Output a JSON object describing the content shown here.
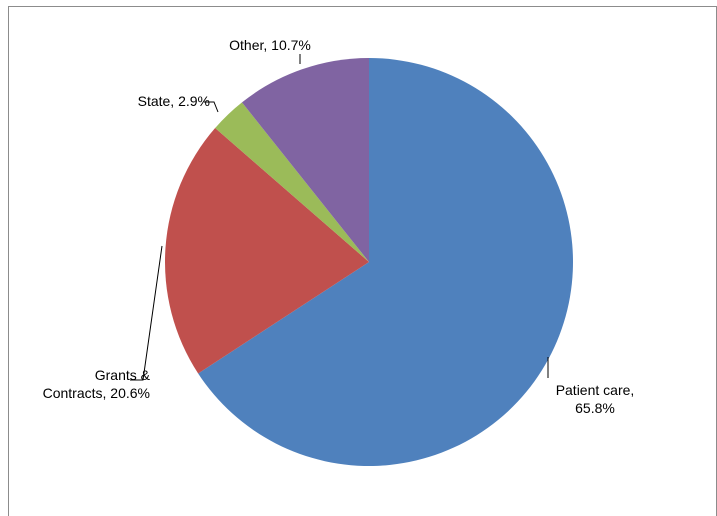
{
  "chart_data": {
    "type": "pie",
    "values": [
      65.8,
      20.6,
      2.9,
      10.7
    ],
    "value_labels": [
      "Patient care, 65.8%",
      "Grants & Contracts, 20.6%",
      "State, 2.9%",
      "Other, 10.7%"
    ],
    "colors": [
      "#4f81bd",
      "#c0504d",
      "#9bbb59",
      "#8064a2"
    ]
  }
}
